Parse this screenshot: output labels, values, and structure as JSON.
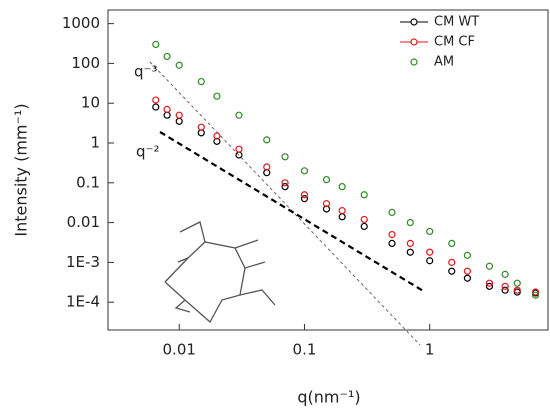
{
  "chart_data": {
    "type": "scatter",
    "x_label": "q(nm⁻¹)",
    "y_label": "Intensity (mm⁻¹)",
    "annotations": [
      "q⁻³",
      "q⁻²"
    ],
    "log_x": true,
    "log_y": true,
    "xlim": [
      0.0027,
      8.8
    ],
    "ylim": [
      2e-05,
      2200
    ],
    "xticks": [
      0.01,
      0.1,
      1
    ],
    "yticks": [
      1000,
      100,
      10,
      1,
      0.1,
      0.01,
      {
        "value": 0.001,
        "label": "1E-3"
      },
      {
        "value": 0.0001,
        "label": "1E-4"
      }
    ],
    "legend": "top-right",
    "x": [
      0.0065,
      0.008,
      0.01,
      0.015,
      0.02,
      0.03,
      0.05,
      0.07,
      0.1,
      0.15,
      0.2,
      0.3,
      0.5,
      0.7,
      1,
      1.5,
      2,
      3,
      4,
      5,
      7
    ],
    "series": [
      {
        "name": "CM WT",
        "color": "#000000",
        "values": [
          8,
          5,
          3.5,
          1.8,
          1.1,
          0.5,
          0.18,
          0.08,
          0.04,
          0.022,
          0.014,
          0.008,
          0.003,
          0.0018,
          0.0011,
          0.0006,
          0.0004,
          0.00025,
          0.0002,
          0.00018,
          0.00017
        ]
      },
      {
        "name": "CM CF",
        "color": "#e8151b",
        "values": [
          12,
          7,
          5,
          2.5,
          1.5,
          0.7,
          0.25,
          0.1,
          0.05,
          0.03,
          0.02,
          0.012,
          0.005,
          0.003,
          0.0018,
          0.001,
          0.0006,
          0.0003,
          0.00025,
          0.0002,
          0.00018
        ]
      },
      {
        "name": "AM",
        "color": "#2f8a24",
        "values": [
          300,
          150,
          90,
          35,
          15,
          5,
          1.2,
          0.45,
          0.2,
          0.12,
          0.08,
          0.05,
          0.018,
          0.01,
          0.006,
          0.003,
          0.0015,
          0.0008,
          0.0005,
          0.0003,
          0.00015
        ]
      }
    ]
  }
}
